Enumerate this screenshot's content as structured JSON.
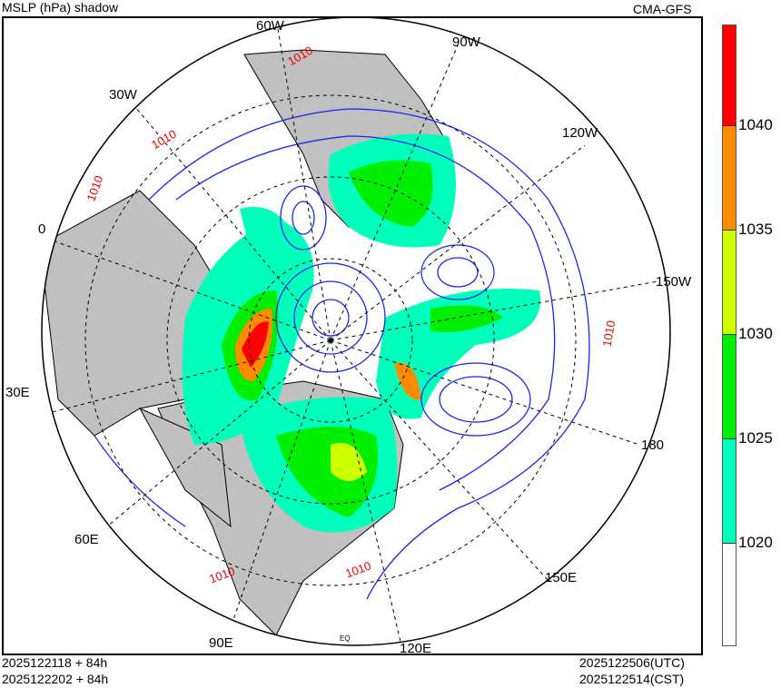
{
  "header": {
    "title_left": "MSLP (hPa) shadow",
    "title_right": "CMA-GFS"
  },
  "footer": {
    "init_utc": "2025122118 + 84h",
    "init_cst": "2025122202 + 84h",
    "valid_utc": "2025122506(UTC)",
    "valid_cst": "2025122514(CST)"
  },
  "map": {
    "projection": "north-polar-stereographic",
    "longitude_labels": [
      "60W",
      "90W",
      "30W",
      "120W",
      "0",
      "150W",
      "30E",
      "180",
      "60E",
      "150E",
      "90E",
      "120E"
    ],
    "equator_label": "EQ",
    "contour_labels": [
      "1010",
      "1010",
      "1010",
      "1010",
      "1010",
      "1010"
    ]
  },
  "colorbar": {
    "ticks": [
      "1040",
      "1035",
      "1030",
      "1025",
      "1020"
    ],
    "bins": [
      {
        "range": ">1040",
        "color": "#ff0000"
      },
      {
        "range": "1035-1040",
        "color": "#ff8c00"
      },
      {
        "range": "1030-1035",
        "color": "#ccff00"
      },
      {
        "range": "1025-1030",
        "color": "#00ee00"
      },
      {
        "range": "1020-1025",
        "color": "#00ffbb"
      },
      {
        "range": "<1020",
        "color": "#ffffff"
      }
    ]
  }
}
